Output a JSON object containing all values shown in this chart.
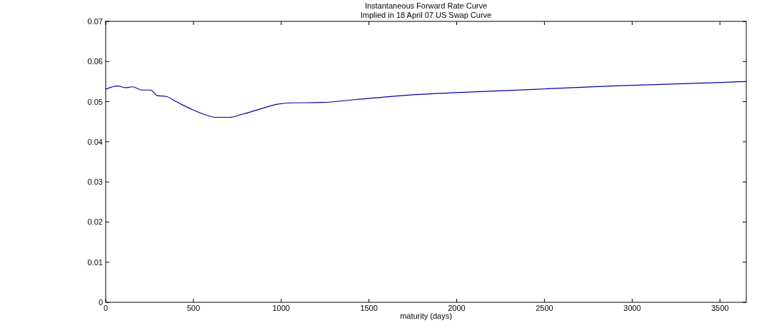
{
  "chart_data": {
    "type": "line",
    "title": "Instantaneous Forward Rate Curve",
    "subtitle": "Implied in 18 April 07 US Swap Curve",
    "xlabel": "maturity (days)",
    "xlim": [
      0,
      3650
    ],
    "xticks": [
      0,
      500,
      1000,
      1500,
      2000,
      2500,
      3000,
      3500
    ],
    "ylim": [
      0,
      0.07
    ],
    "yticks": [
      0,
      0.01,
      0.02,
      0.03,
      0.04,
      0.05,
      0.06,
      0.07
    ],
    "grid": false,
    "series": [
      {
        "color": "#0000aa",
        "x": [
          0,
          67,
          111,
          154,
          205,
          256,
          293,
          344,
          402,
          490,
          577,
          628,
          708,
          781,
          897,
          985,
          1058,
          1233,
          1422,
          1713,
          2296,
          2879,
          3650
        ],
        "values": [
          0.0531,
          0.0539,
          0.0535,
          0.0537,
          0.0529,
          0.0529,
          0.0515,
          0.0513,
          0.05,
          0.0481,
          0.0466,
          0.0461,
          0.0461,
          0.0469,
          0.0484,
          0.0494,
          0.0497,
          0.0498,
          0.0505,
          0.0516,
          0.0528,
          0.0539,
          0.055
        ]
      }
    ]
  }
}
